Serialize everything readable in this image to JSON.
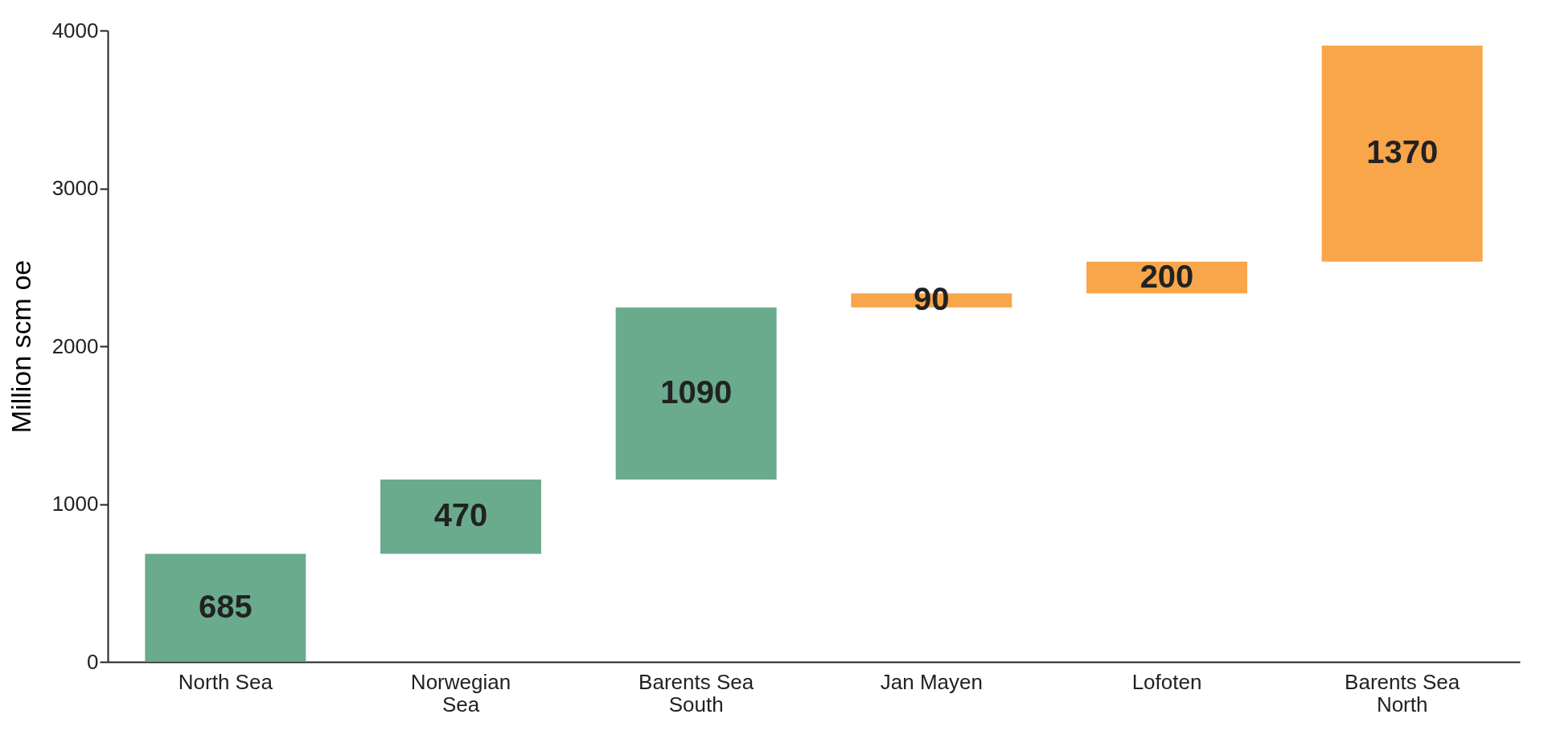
{
  "chart_data": {
    "type": "bar",
    "ylabel": "Million scm oe",
    "categories": [
      "North Sea",
      "Norwegian Sea",
      "Barents Sea South",
      "Jan Mayen",
      "Lofoten",
      "Barents Sea North"
    ],
    "values": [
      685,
      470,
      1090,
      90,
      200,
      1370
    ],
    "base": [
      0,
      685,
      1155,
      2245,
      2335,
      2535
    ],
    "colors": [
      "#6aab8e",
      "#6aab8e",
      "#6aab8e",
      "#f9a54a",
      "#f9a54a",
      "#f9a54a"
    ],
    "ylim": [
      0,
      4000
    ],
    "yticks": [
      0,
      1000,
      2000,
      3000,
      4000
    ],
    "data_labels": true,
    "grid": false
  }
}
